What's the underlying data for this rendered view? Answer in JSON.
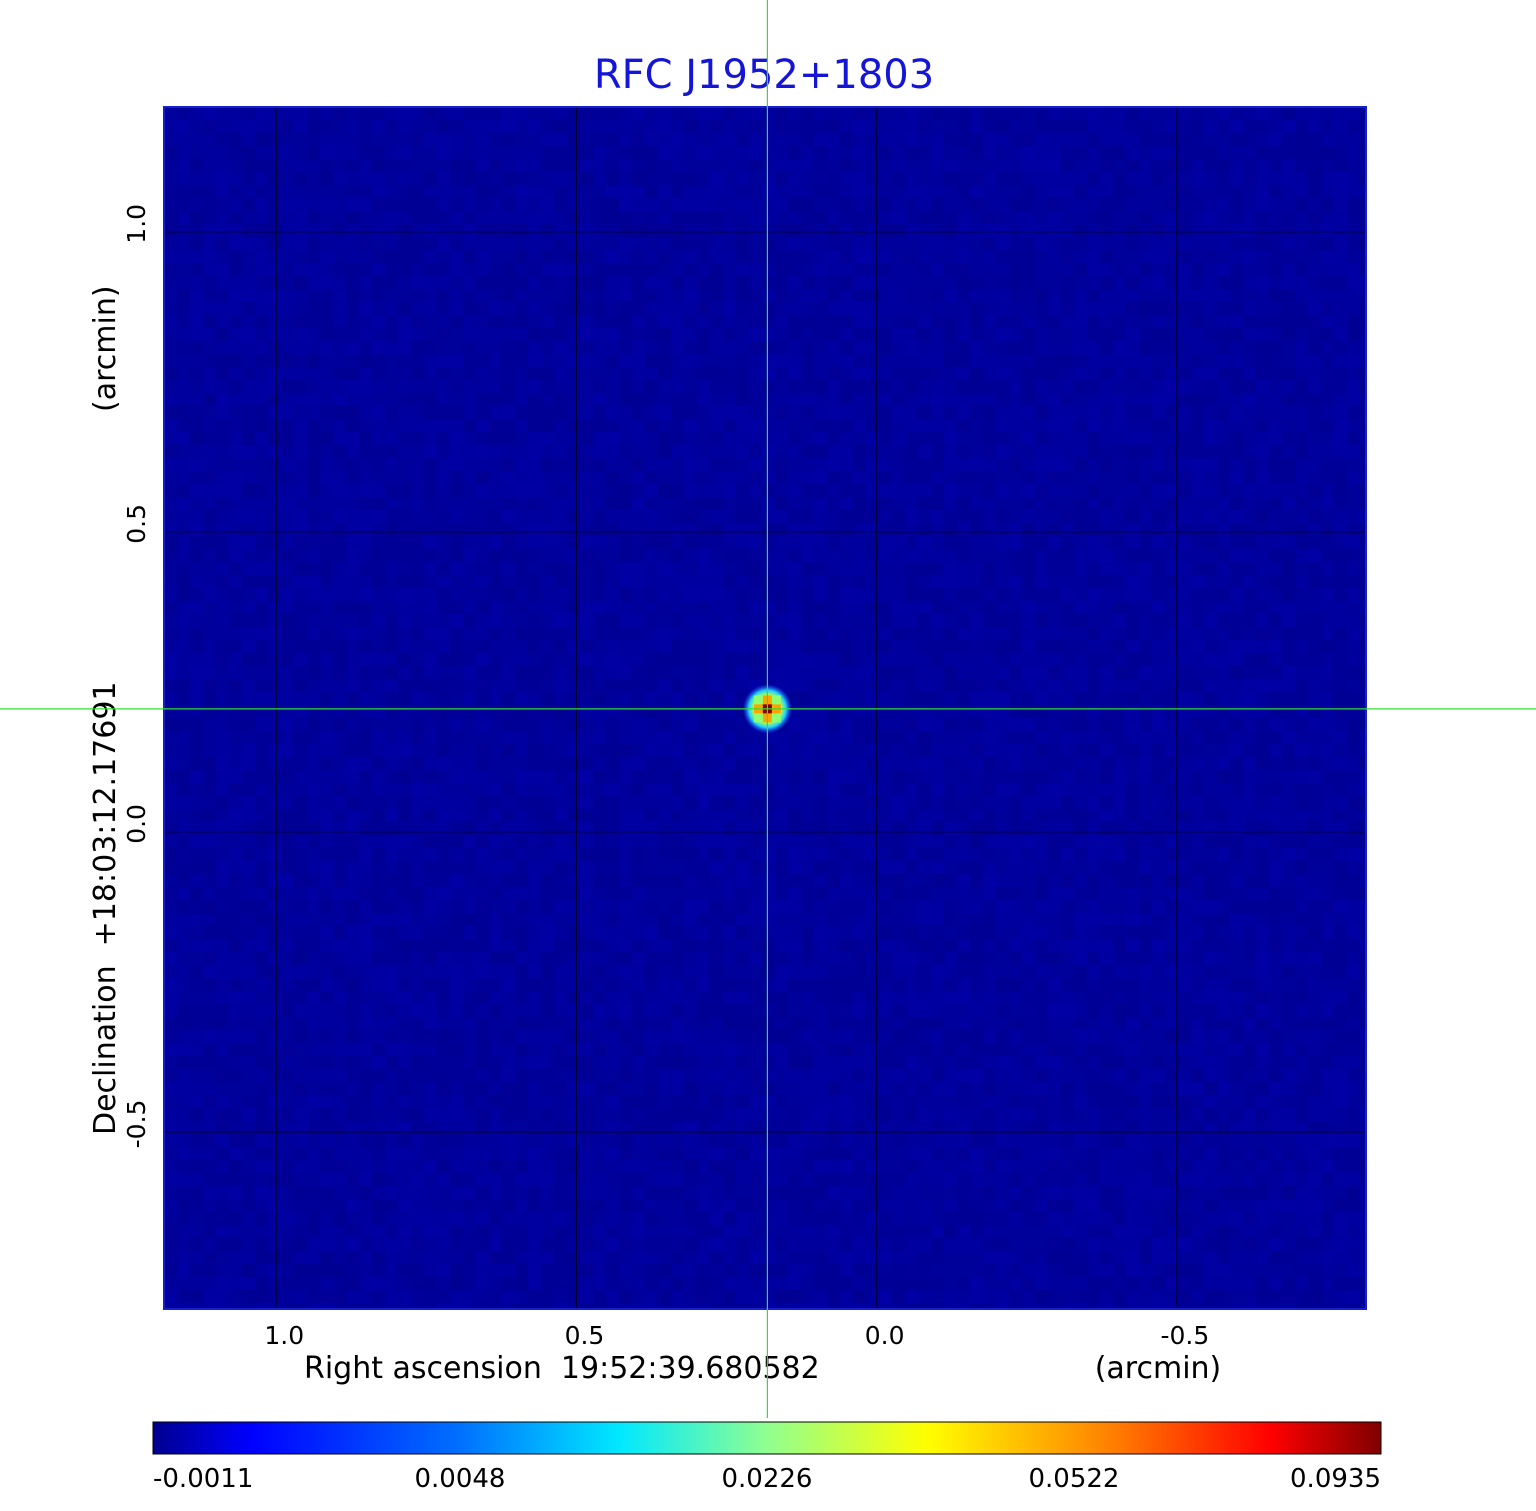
{
  "chart_data": {
    "type": "heatmap",
    "title": "RFC J1952+1803",
    "xlabel": "Right ascension  19:52:39.680582",
    "xlabel_unit": "(arcmin)",
    "ylabel": "Declination  +18:03:12.17691",
    "ylabel_unit": "(arcmin)",
    "x_ticks": [
      {
        "value": 1.0,
        "label": "1.0"
      },
      {
        "value": 0.5,
        "label": "0.5"
      },
      {
        "value": 0.0,
        "label": "0.0"
      },
      {
        "value": -0.5,
        "label": "-0.5"
      }
    ],
    "y_ticks": [
      {
        "value": 1.0,
        "label": "1.0"
      },
      {
        "value": 0.5,
        "label": "0.5"
      },
      {
        "value": 0.0,
        "label": "0.0"
      },
      {
        "value": -0.5,
        "label": "-0.5"
      }
    ],
    "xlim": [
      1.187,
      -0.815
    ],
    "ylim": [
      -0.795,
      1.208
    ],
    "grid": true,
    "crosshair": {
      "x": 0.182,
      "y": 0.205,
      "color": "#33dd33"
    },
    "background_value": 0.0015,
    "source": {
      "x": 0.182,
      "y": 0.205,
      "peak": 0.0935,
      "sigma_arcmin": 0.018
    },
    "colormap": "jet",
    "colorbar": {
      "min": -0.0011,
      "max": 0.0935,
      "ticks": [
        {
          "value": -0.0011,
          "label": "-0.0011"
        },
        {
          "value": 0.0048,
          "label": "0.0048"
        },
        {
          "value": 0.0226,
          "label": "0.0226"
        },
        {
          "value": 0.0522,
          "label": "0.0522"
        },
        {
          "value": 0.0935,
          "label": "0.0935"
        }
      ]
    }
  }
}
